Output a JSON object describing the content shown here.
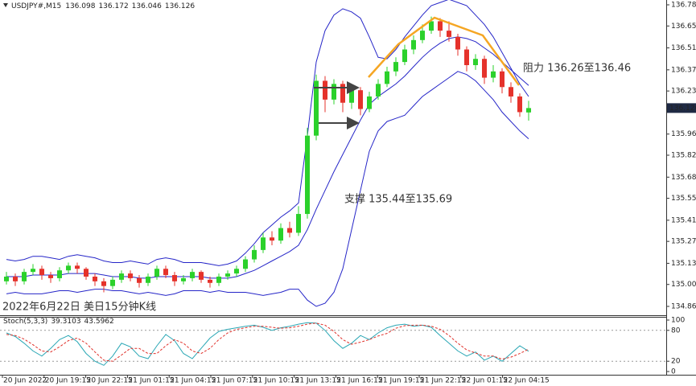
{
  "chart_data": [
    {
      "type": "candlestick",
      "symbol": "USDJPY#,M15",
      "title": "2022年6月22日 美日15分钟K线",
      "annotations": [
        "阻力 136.26至136.46",
        "支撑 135.44至135.69"
      ],
      "up_color": "#2bd12b",
      "down_color": "#e5322b",
      "band_color": "#2626c8",
      "open": [
        135.02,
        135.05,
        135.02,
        135.08,
        135.1,
        135.06,
        135.04,
        135.09,
        135.12,
        135.1,
        135.05,
        135.02,
        134.99,
        135.03,
        135.07,
        135.04,
        135.01,
        135.05,
        135.1,
        135.06,
        135.02,
        135.04,
        135.08,
        135.03,
        135.01,
        135.05,
        135.07,
        135.1,
        135.16,
        135.22,
        135.3,
        135.28,
        135.36,
        135.33,
        135.45,
        135.95,
        136.3,
        136.18,
        136.28,
        136.16,
        136.24,
        136.12,
        136.2,
        136.28,
        136.36,
        136.42,
        136.5,
        136.56,
        136.62,
        136.68,
        136.62,
        136.58,
        136.5,
        136.4,
        136.44,
        136.32,
        136.36,
        136.26,
        136.2,
        136.098
      ],
      "high": [
        135.08,
        135.07,
        135.1,
        135.13,
        135.12,
        135.08,
        135.11,
        135.14,
        135.14,
        135.11,
        135.07,
        135.04,
        135.05,
        135.09,
        135.09,
        135.06,
        135.07,
        135.12,
        135.12,
        135.08,
        135.06,
        135.1,
        135.09,
        135.05,
        135.07,
        135.09,
        135.12,
        135.18,
        135.25,
        135.33,
        135.34,
        135.39,
        135.4,
        135.5,
        136.0,
        136.34,
        136.33,
        136.31,
        136.3,
        136.27,
        136.26,
        136.23,
        136.31,
        136.39,
        136.45,
        136.53,
        136.59,
        136.66,
        136.71,
        136.7,
        136.68,
        136.6,
        136.52,
        136.47,
        136.46,
        136.4,
        136.38,
        136.29,
        136.22,
        136.172
      ],
      "low": [
        135.0,
        134.99,
        135.0,
        135.06,
        135.03,
        135.01,
        135.02,
        135.07,
        135.07,
        135.03,
        134.99,
        134.95,
        134.97,
        135.01,
        135.02,
        134.98,
        134.99,
        135.03,
        135.04,
        134.99,
        135.0,
        135.02,
        135.01,
        134.98,
        134.99,
        135.03,
        135.05,
        135.08,
        135.14,
        135.2,
        135.25,
        135.26,
        135.3,
        135.31,
        135.42,
        135.92,
        136.1,
        136.15,
        136.1,
        136.12,
        136.08,
        136.1,
        136.18,
        136.26,
        136.33,
        136.4,
        136.47,
        136.54,
        136.6,
        136.58,
        136.55,
        136.46,
        136.36,
        136.37,
        136.28,
        136.29,
        136.22,
        136.16,
        136.07,
        136.046
      ],
      "close": [
        135.05,
        135.02,
        135.08,
        135.1,
        135.06,
        135.04,
        135.09,
        135.12,
        135.1,
        135.05,
        135.02,
        134.99,
        135.03,
        135.07,
        135.04,
        135.01,
        135.05,
        135.1,
        135.06,
        135.02,
        135.04,
        135.08,
        135.03,
        135.01,
        135.05,
        135.07,
        135.1,
        135.16,
        135.22,
        135.3,
        135.28,
        135.36,
        135.33,
        135.45,
        135.95,
        136.3,
        136.18,
        136.28,
        136.16,
        136.24,
        136.12,
        136.2,
        136.28,
        136.36,
        136.42,
        136.5,
        136.56,
        136.62,
        136.68,
        136.62,
        136.58,
        136.5,
        136.4,
        136.44,
        136.32,
        136.36,
        136.26,
        136.2,
        136.1,
        136.126
      ],
      "bands": {
        "upper": [
          135.16,
          135.15,
          135.16,
          135.18,
          135.18,
          135.17,
          135.16,
          135.18,
          135.19,
          135.18,
          135.17,
          135.15,
          135.14,
          135.14,
          135.15,
          135.14,
          135.13,
          135.16,
          135.17,
          135.16,
          135.14,
          135.14,
          135.14,
          135.13,
          135.12,
          135.13,
          135.15,
          135.2,
          135.26,
          135.33,
          135.38,
          135.43,
          135.47,
          135.52,
          135.95,
          136.42,
          136.62,
          136.72,
          136.76,
          136.74,
          136.7,
          136.58,
          136.45,
          136.44,
          136.5,
          136.58,
          136.65,
          136.72,
          136.78,
          136.8,
          136.82,
          136.8,
          136.78,
          136.72,
          136.66,
          136.58,
          136.48,
          136.38,
          136.28,
          136.2
        ],
        "middle": [
          135.05,
          135.05,
          135.05,
          135.06,
          135.06,
          135.06,
          135.06,
          135.07,
          135.07,
          135.07,
          135.07,
          135.06,
          135.05,
          135.05,
          135.05,
          135.04,
          135.04,
          135.05,
          135.05,
          135.05,
          135.05,
          135.05,
          135.05,
          135.04,
          135.04,
          135.04,
          135.05,
          135.07,
          135.09,
          135.12,
          135.15,
          135.18,
          135.21,
          135.25,
          135.35,
          135.48,
          135.6,
          135.72,
          135.83,
          135.94,
          136.05,
          136.15,
          136.2,
          136.24,
          136.28,
          136.33,
          136.39,
          136.45,
          136.5,
          136.54,
          136.57,
          136.58,
          136.57,
          136.55,
          136.51,
          136.47,
          136.42,
          136.37,
          136.32,
          136.27
        ],
        "lower": [
          134.94,
          134.95,
          134.94,
          134.94,
          134.94,
          134.95,
          134.96,
          134.96,
          134.95,
          134.96,
          134.97,
          134.97,
          134.96,
          134.96,
          134.95,
          134.94,
          134.95,
          134.94,
          134.93,
          134.94,
          134.96,
          134.96,
          134.96,
          134.95,
          134.96,
          134.95,
          134.95,
          134.95,
          134.94,
          134.93,
          134.94,
          134.95,
          134.97,
          134.97,
          134.9,
          134.86,
          134.88,
          134.95,
          135.1,
          135.35,
          135.6,
          135.85,
          135.98,
          136.04,
          136.06,
          136.08,
          136.14,
          136.2,
          136.24,
          136.28,
          136.32,
          136.36,
          136.34,
          136.3,
          136.24,
          136.18,
          136.1,
          136.04,
          135.98,
          135.93
        ]
      },
      "ylim": [
        134.86,
        136.785
      ],
      "yticks": [
        136.785,
        {
          "value": 136.65,
          "label": "136.650"
        },
        {
          "value": 136.51,
          "label": "136.510"
        },
        {
          "value": 136.37,
          "label": "136.370"
        },
        136.235,
        {
          "value": 135.96,
          "label": "135.960"
        },
        135.825,
        135.685,
        {
          "value": 135.55,
          "label": "135.550"
        },
        {
          "value": 135.41,
          "label": "135.410"
        },
        135.275,
        135.135,
        {
          "value": 135,
          "label": "135.000"
        },
        {
          "value": 134.86,
          "label": "134.860"
        }
      ],
      "x_labels": [
        "20 Jun 2022",
        "20 Jun 19:15",
        "20 Jun 22:15",
        "21 Jun 01:15",
        "21 Jun 04:15",
        "21 Jun 07:15",
        "21 Jun 10:15",
        "21 Jun 13:15",
        "21 Jun 16:15",
        "21 Jun 19:15",
        "21 Jun 22:15",
        "22 Jun 01:15",
        "22 Jun 04:15"
      ]
    },
    {
      "type": "line",
      "label": "Stoch(5,3,3)",
      "series": [
        {
          "color": "#2aa7b5",
          "dashed": false,
          "values": [
            75,
            68,
            55,
            40,
            30,
            45,
            62,
            70,
            58,
            35,
            20,
            12,
            30,
            55,
            48,
            30,
            25,
            50,
            72,
            60,
            35,
            25,
            45,
            65,
            78,
            82,
            85,
            88,
            90,
            86,
            80,
            85,
            88,
            92,
            95,
            94,
            80,
            60,
            45,
            55,
            70,
            62,
            75,
            85,
            90,
            92,
            88,
            90,
            86,
            70,
            55,
            40,
            30,
            38,
            22,
            30,
            20,
            35,
            50,
            39.3103
          ]
        },
        {
          "color": "#e0302a",
          "dashed": true,
          "values": [
            72,
            70,
            63,
            52,
            40,
            38,
            48,
            60,
            65,
            55,
            38,
            22,
            20,
            32,
            45,
            45,
            35,
            35,
            50,
            62,
            55,
            40,
            35,
            45,
            62,
            75,
            82,
            85,
            88,
            88,
            86,
            84,
            85,
            88,
            92,
            94,
            90,
            78,
            62,
            53,
            57,
            62,
            69,
            74,
            84,
            89,
            90,
            90,
            88,
            82,
            70,
            55,
            42,
            36,
            30,
            30,
            24,
            28,
            35,
            43.5962
          ]
        }
      ],
      "levels": [
        80,
        20
      ],
      "ylim": [
        0,
        100
      ],
      "yticks": [
        100,
        80,
        20,
        0
      ]
    }
  ]
}
